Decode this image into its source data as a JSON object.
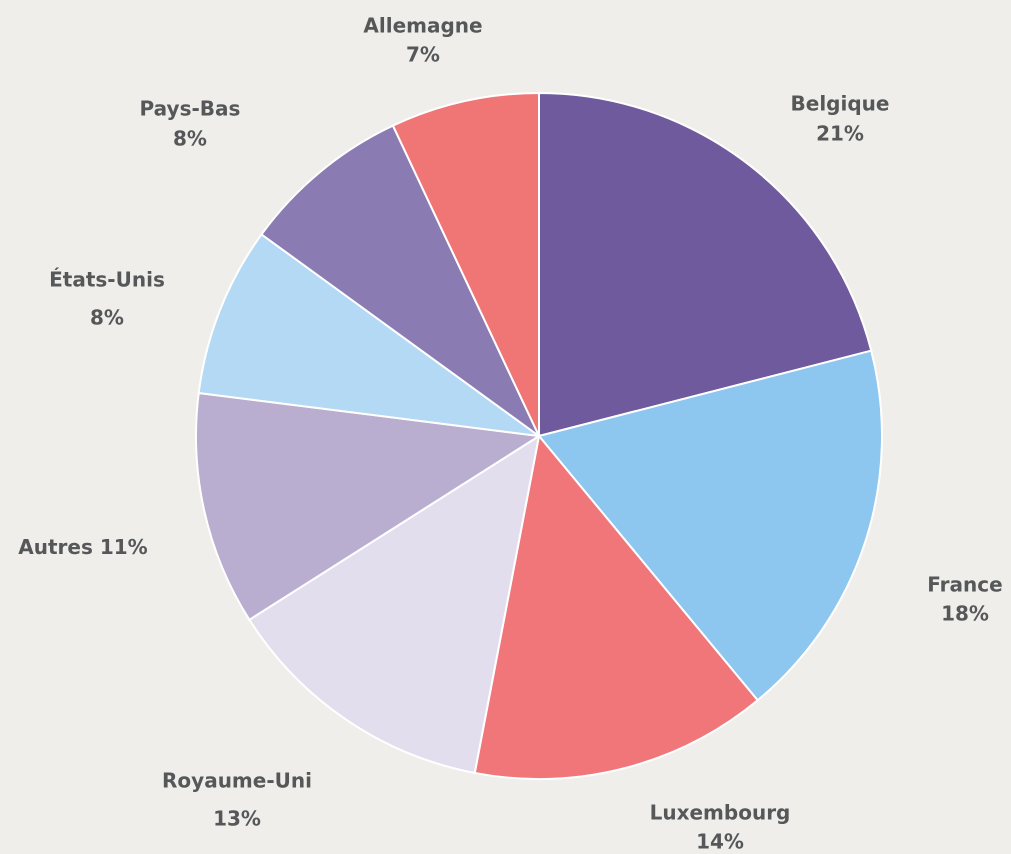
{
  "chart_data": {
    "type": "pie",
    "categories": [
      "Belgique",
      "France",
      "Luxembourg",
      "Royaume-Uni",
      "Autres",
      "États-Unis",
      "Pays-Bas",
      "Allemagne"
    ],
    "values": [
      21,
      18,
      14,
      13,
      11,
      8,
      8,
      7
    ],
    "value_labels": [
      "21%",
      "18%",
      "14%",
      "13%",
      "11%",
      "8%",
      "8%",
      "7%"
    ],
    "colors": [
      "#6e5a9c",
      "#8dc6ee",
      "#f0767a",
      "#e3deed",
      "#b9aed0",
      "#b3d9f5",
      "#8a7bb3",
      "#f07676"
    ]
  }
}
